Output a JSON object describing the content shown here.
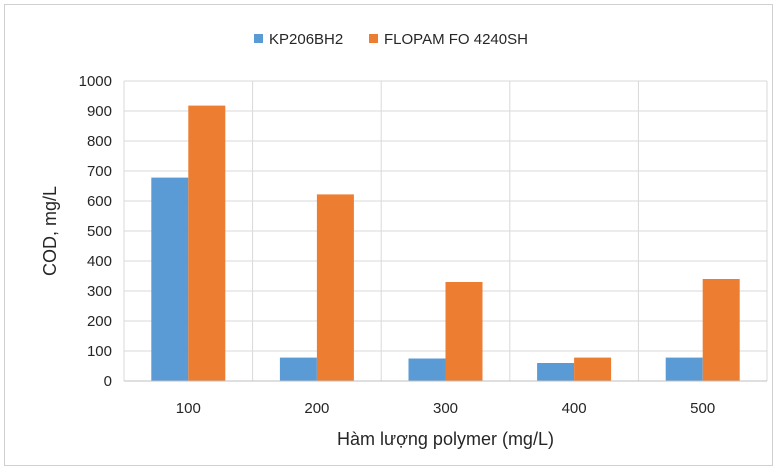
{
  "chart_data": {
    "type": "bar",
    "categories": [
      "100",
      "200",
      "300",
      "400",
      "500"
    ],
    "series": [
      {
        "name": "KP206BH2",
        "color": "#5b9bd5",
        "values": [
          678,
          78,
          75,
          60,
          78
        ]
      },
      {
        "name": "FLOPAM FO 4240SH",
        "color": "#ed7d31",
        "values": [
          918,
          622,
          330,
          78,
          340
        ]
      }
    ],
    "xlabel": "Hàm lượng polymer (mg/L)",
    "ylabel": "COD, mg/L",
    "ylim": [
      0,
      1000
    ],
    "yticks": [
      "0",
      "100",
      "200",
      "300",
      "400",
      "500",
      "600",
      "700",
      "800",
      "900",
      "1000"
    ],
    "grid": true,
    "legend_position": "top"
  }
}
